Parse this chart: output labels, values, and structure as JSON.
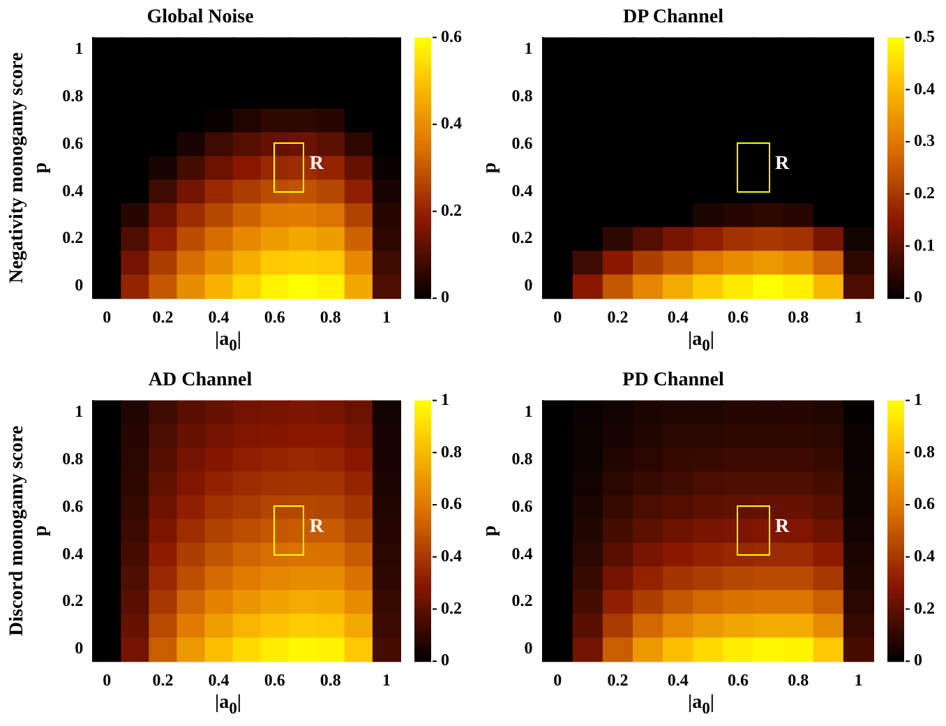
{
  "chart_data": [
    {
      "type": "heatmap",
      "title": "Global Noise",
      "xlabel": "|a$_{0}$|",
      "ylabel": "Negativity monogamy score\np",
      "annotations": [
        "R"
      ],
      "categories": [
        "0",
        null,
        "0.2",
        null,
        "0.4",
        null,
        "0.6",
        null,
        "0.8",
        null,
        "1"
      ],
      "y_categories": [
        "1",
        null,
        "0.8",
        null,
        "0.6",
        null,
        "0.4",
        null,
        "0.2",
        null,
        "0"
      ],
      "cells": [
        [
          0,
          0,
          0,
          0,
          0,
          0,
          0,
          0,
          0,
          0,
          0
        ],
        [
          0,
          0,
          0,
          0,
          0,
          0,
          0,
          0,
          0,
          0,
          0
        ],
        [
          0,
          0,
          0,
          0,
          0,
          0,
          0,
          0,
          0,
          0,
          0
        ],
        [
          0,
          0,
          0,
          0,
          0.01,
          0.04,
          0.06,
          0.06,
          0.05,
          0,
          0
        ],
        [
          0,
          0,
          0,
          0.03,
          0.08,
          0.11,
          0.13,
          0.14,
          0.12,
          0.06,
          0
        ],
        [
          0,
          0,
          0.03,
          0.09,
          0.14,
          0.18,
          0.21,
          0.22,
          0.2,
          0.13,
          0.01
        ],
        [
          0,
          0,
          0.08,
          0.15,
          0.21,
          0.25,
          0.28,
          0.29,
          0.27,
          0.19,
          0.03
        ],
        [
          0,
          0.05,
          0.14,
          0.22,
          0.27,
          0.32,
          0.36,
          0.37,
          0.35,
          0.26,
          0.05
        ],
        [
          0,
          0.1,
          0.19,
          0.28,
          0.34,
          0.39,
          0.43,
          0.45,
          0.43,
          0.32,
          0.06
        ],
        [
          0,
          0.15,
          0.25,
          0.34,
          0.4,
          0.46,
          0.51,
          0.52,
          0.51,
          0.39,
          0.08
        ],
        [
          0,
          0.2,
          0.3,
          0.4,
          0.47,
          0.53,
          0.58,
          0.6,
          0.58,
          0.45,
          0.1
        ]
      ],
      "clim": [
        0,
        0.6
      ],
      "cticks": [
        0,
        0.2,
        0.4,
        0.6
      ]
    },
    {
      "type": "heatmap",
      "title": "DP Channel",
      "xlabel": "|a$_{0}$|",
      "ylabel": "p",
      "annotations": [
        "R"
      ],
      "categories": [
        "0",
        null,
        "0.2",
        null,
        "0.4",
        null,
        "0.6",
        null,
        "0.8",
        null,
        "1"
      ],
      "y_categories": [
        "1",
        null,
        "0.8",
        null,
        "0.6",
        null,
        "0.4",
        null,
        "0.2",
        null,
        "0"
      ],
      "cells": [
        [
          0,
          0,
          0,
          0,
          0,
          0,
          0,
          0,
          0,
          0,
          0
        ],
        [
          0,
          0,
          0,
          0,
          0,
          0,
          0,
          0,
          0,
          0,
          0
        ],
        [
          0,
          0,
          0,
          0,
          0,
          0,
          0,
          0,
          0,
          0,
          0
        ],
        [
          0,
          0,
          0,
          0,
          0,
          0,
          0,
          0,
          0,
          0,
          0
        ],
        [
          0,
          0,
          0,
          0,
          0,
          0,
          0,
          0,
          0,
          0,
          0
        ],
        [
          0,
          0,
          0,
          0,
          0,
          0,
          0,
          0,
          0,
          0,
          0
        ],
        [
          0,
          0,
          0,
          0,
          0,
          0,
          0,
          0,
          0,
          0,
          0
        ],
        [
          0,
          0,
          0,
          0,
          0,
          0.03,
          0.04,
          0.05,
          0.04,
          0,
          0
        ],
        [
          0,
          0,
          0.05,
          0.09,
          0.13,
          0.16,
          0.19,
          0.2,
          0.19,
          0.13,
          0.02
        ],
        [
          0,
          0.07,
          0.15,
          0.21,
          0.25,
          0.3,
          0.33,
          0.35,
          0.33,
          0.27,
          0.05
        ],
        [
          0,
          0.15,
          0.25,
          0.32,
          0.38,
          0.43,
          0.47,
          0.5,
          0.48,
          0.4,
          0.08
        ]
      ],
      "clim": [
        0,
        0.5
      ],
      "cticks": [
        0,
        0.1,
        0.2,
        0.3,
        0.4,
        0.5
      ]
    },
    {
      "type": "heatmap",
      "title": "AD Channel",
      "xlabel": "|a$_{0}$|",
      "ylabel": "Discord monogamy score\np",
      "annotations": [
        "R"
      ],
      "categories": [
        "0",
        null,
        "0.2",
        null,
        "0.4",
        null,
        "0.6",
        null,
        "0.8",
        null,
        "1"
      ],
      "y_categories": [
        "1",
        null,
        "0.8",
        null,
        "0.6",
        null,
        "0.4",
        null,
        "0.2",
        null,
        "0"
      ],
      "cells": [
        [
          0,
          0.07,
          0.14,
          0.19,
          0.22,
          0.25,
          0.26,
          0.27,
          0.26,
          0.23,
          0.04
        ],
        [
          0,
          0.08,
          0.16,
          0.22,
          0.25,
          0.28,
          0.29,
          0.3,
          0.3,
          0.26,
          0.05
        ],
        [
          0,
          0.09,
          0.18,
          0.25,
          0.29,
          0.32,
          0.34,
          0.35,
          0.34,
          0.3,
          0.05
        ],
        [
          0,
          0.1,
          0.21,
          0.28,
          0.33,
          0.36,
          0.38,
          0.39,
          0.39,
          0.34,
          0.06
        ],
        [
          0,
          0.11,
          0.24,
          0.32,
          0.38,
          0.41,
          0.44,
          0.45,
          0.44,
          0.39,
          0.07
        ],
        [
          0,
          0.13,
          0.27,
          0.37,
          0.43,
          0.47,
          0.5,
          0.51,
          0.51,
          0.44,
          0.08
        ],
        [
          0,
          0.15,
          0.31,
          0.42,
          0.49,
          0.54,
          0.57,
          0.58,
          0.58,
          0.51,
          0.09
        ],
        [
          0,
          0.17,
          0.35,
          0.47,
          0.56,
          0.61,
          0.64,
          0.66,
          0.66,
          0.58,
          0.1
        ],
        [
          0,
          0.19,
          0.4,
          0.54,
          0.63,
          0.69,
          0.73,
          0.76,
          0.75,
          0.66,
          0.12
        ],
        [
          0,
          0.22,
          0.46,
          0.61,
          0.72,
          0.79,
          0.83,
          0.86,
          0.85,
          0.75,
          0.13
        ],
        [
          0,
          0.25,
          0.52,
          0.7,
          0.82,
          0.9,
          0.95,
          0.98,
          0.97,
          0.85,
          0.15
        ]
      ],
      "clim": [
        0,
        1
      ],
      "cticks": [
        0,
        0.2,
        0.4,
        0.6,
        0.8,
        1
      ]
    },
    {
      "type": "heatmap",
      "title": "PD Channel",
      "xlabel": "|a$_{0}$|",
      "ylabel": "p",
      "annotations": [
        "R"
      ],
      "categories": [
        "0",
        null,
        "0.2",
        null,
        "0.4",
        null,
        "0.6",
        null,
        "0.8",
        null,
        "1"
      ],
      "y_categories": [
        "1",
        null,
        "0.8",
        null,
        "0.6",
        null,
        "0.4",
        null,
        "0.2",
        null,
        "0"
      ],
      "cells": [
        [
          0,
          0.02,
          0.04,
          0.06,
          0.07,
          0.07,
          0.08,
          0.08,
          0.08,
          0.07,
          0.01
        ],
        [
          0,
          0.03,
          0.05,
          0.07,
          0.09,
          0.09,
          0.1,
          0.1,
          0.1,
          0.09,
          0.02
        ],
        [
          0,
          0.03,
          0.07,
          0.09,
          0.11,
          0.12,
          0.13,
          0.13,
          0.13,
          0.11,
          0.02
        ],
        [
          0,
          0.04,
          0.09,
          0.12,
          0.14,
          0.16,
          0.17,
          0.17,
          0.17,
          0.15,
          0.03
        ],
        [
          0,
          0.06,
          0.12,
          0.16,
          0.18,
          0.2,
          0.21,
          0.22,
          0.22,
          0.19,
          0.03
        ],
        [
          0,
          0.07,
          0.15,
          0.2,
          0.24,
          0.26,
          0.27,
          0.28,
          0.28,
          0.24,
          0.04
        ],
        [
          0,
          0.09,
          0.19,
          0.26,
          0.3,
          0.33,
          0.35,
          0.36,
          0.36,
          0.31,
          0.06
        ],
        [
          0,
          0.12,
          0.25,
          0.33,
          0.39,
          0.42,
          0.45,
          0.46,
          0.46,
          0.4,
          0.07
        ],
        [
          0,
          0.15,
          0.32,
          0.42,
          0.5,
          0.55,
          0.58,
          0.59,
          0.59,
          0.52,
          0.09
        ],
        [
          0,
          0.19,
          0.41,
          0.55,
          0.64,
          0.7,
          0.74,
          0.76,
          0.76,
          0.66,
          0.12
        ],
        [
          0,
          0.25,
          0.52,
          0.7,
          0.82,
          0.9,
          0.95,
          0.98,
          0.97,
          0.85,
          0.15
        ]
      ],
      "clim": [
        0,
        1
      ],
      "cticks": [
        0,
        0.2,
        0.4,
        0.6,
        0.8,
        1
      ]
    }
  ]
}
